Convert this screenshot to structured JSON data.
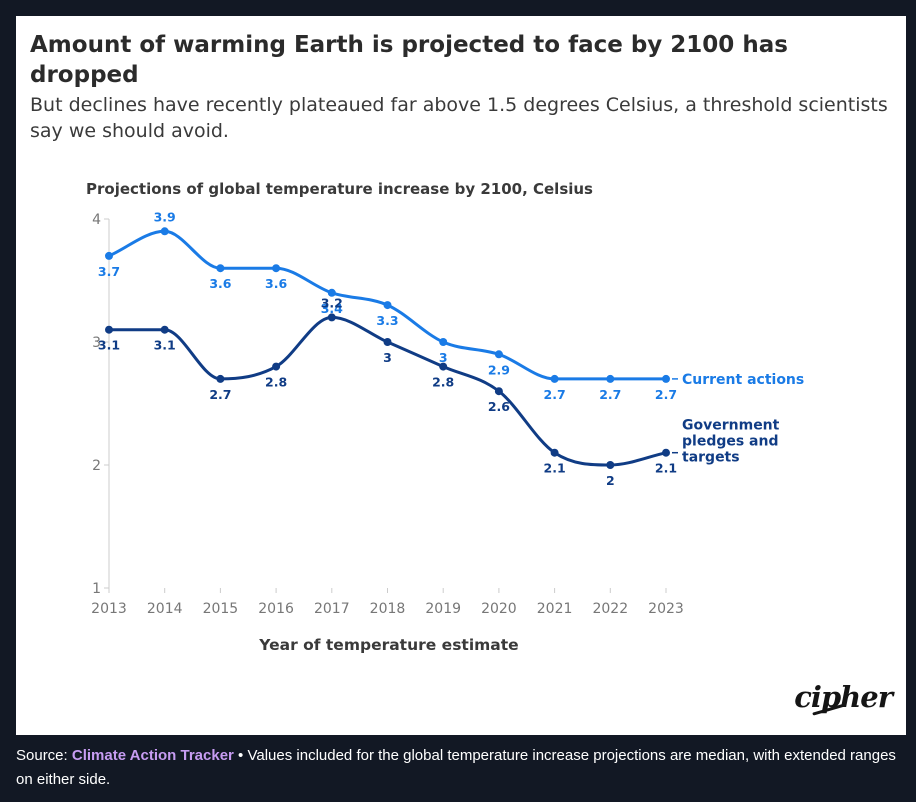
{
  "header": {
    "title": "Amount of warming Earth is projected to face by 2100 has dropped",
    "subtitle": "But declines have recently plateaued far above 1.5 degrees Celsius, a threshold scientists say we should avoid."
  },
  "logo": {
    "text": "cipher"
  },
  "footer": {
    "source_prefix": "Source: ",
    "source_link": "Climate Action Tracker",
    "note": " • Values included for the global temperature increase projections are median, with extended ranges on either side."
  },
  "colors": {
    "current_actions": "#1a7be6",
    "government_pledges": "#103c85",
    "axis": "#cccccc",
    "tick_text": "#777777"
  },
  "chart_data": {
    "type": "line",
    "title": "Projections of global temperature increase by 2100, Celsius",
    "xlabel": "Year of temperature estimate",
    "ylabel": "",
    "x": [
      2013,
      2014,
      2015,
      2016,
      2017,
      2018,
      2019,
      2020,
      2021,
      2022,
      2023
    ],
    "ylim": [
      1,
      4
    ],
    "yticks": [
      1,
      2,
      3,
      4
    ],
    "grid": false,
    "legend": "direct labels at line ends",
    "series": [
      {
        "name": "Current actions",
        "color_key": "current_actions",
        "values": [
          3.7,
          3.9,
          3.6,
          3.6,
          3.4,
          3.3,
          3.0,
          2.9,
          2.7,
          2.7,
          2.7
        ],
        "labels": [
          "3.7",
          "3.9",
          "3.6",
          "3.6",
          "3.4",
          "3.3",
          "3",
          "2.9",
          "2.7",
          "2.7",
          "2.7"
        ],
        "label_lines": [
          "Current actions"
        ]
      },
      {
        "name": "Government pledges and targets",
        "color_key": "government_pledges",
        "values": [
          3.1,
          3.1,
          2.7,
          2.8,
          3.2,
          3.0,
          2.8,
          2.6,
          2.1,
          2.0,
          2.1
        ],
        "labels": [
          "3.1",
          "3.1",
          "2.7",
          "2.8",
          "3.2",
          "3",
          "2.8",
          "2.6",
          "2.1",
          "2",
          "2.1"
        ],
        "label_lines": [
          "Government",
          "pledges and",
          "targets"
        ]
      }
    ]
  }
}
